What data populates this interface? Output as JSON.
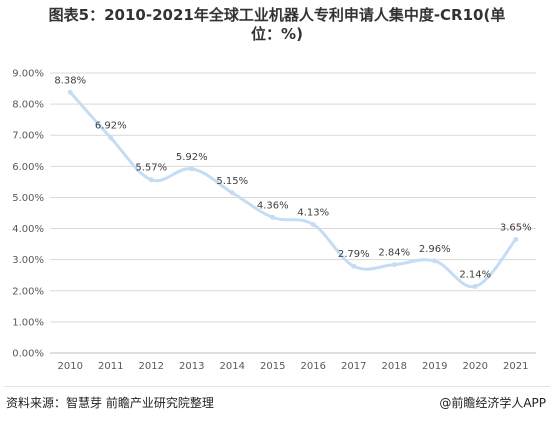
{
  "title_lines": [
    "图表5：2010-2021年全球工业机器人专利申请人集中度-CR10(单",
    "位：%)"
  ],
  "source": "资料来源：智慧芽 前瞻产业研究院整理",
  "brand": "@前瞻经济学人APP",
  "colors": {
    "line": "#c5dcf5",
    "grid": "#d9d9d9",
    "axis": "#bfbfbf",
    "tick_text": "#595959",
    "label_text": "#404040"
  },
  "chart_data": {
    "type": "line",
    "categories": [
      "2010",
      "2011",
      "2012",
      "2013",
      "2014",
      "2015",
      "2016",
      "2017",
      "2018",
      "2019",
      "2020",
      "2021"
    ],
    "series": [
      {
        "values": [
          8.38,
          6.92,
          5.57,
          5.92,
          5.15,
          4.36,
          4.13,
          2.79,
          2.84,
          2.96,
          2.14,
          3.65
        ],
        "labels": [
          "8.38%",
          "6.92%",
          "5.57%",
          "5.92%",
          "5.15%",
          "4.36%",
          "4.13%",
          "2.79%",
          "2.84%",
          "2.96%",
          "2.14%",
          "3.65%"
        ]
      }
    ],
    "y_ticks": [
      "0.00%",
      "1.00%",
      "2.00%",
      "3.00%",
      "4.00%",
      "5.00%",
      "6.00%",
      "7.00%",
      "8.00%",
      "9.00%"
    ],
    "ylim": [
      0,
      9
    ],
    "grid": true,
    "smooth": true,
    "legend": "none"
  }
}
